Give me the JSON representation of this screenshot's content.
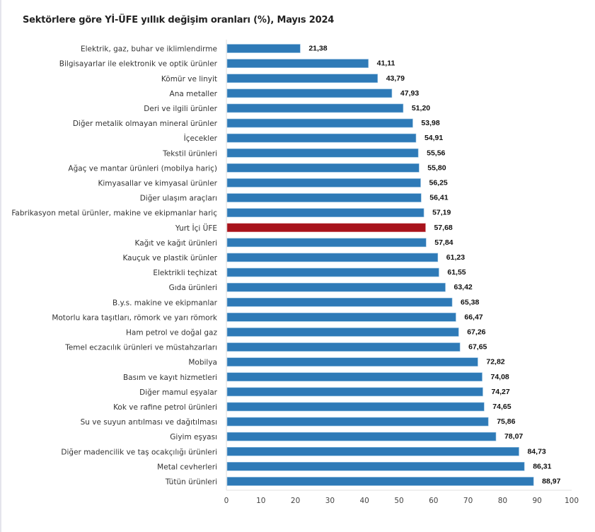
{
  "chart_data": {
    "type": "bar",
    "orientation": "horizontal",
    "title": "Sektörlere göre Yİ-ÜFE yıllık değişim oranları (%), Mayıs 2024",
    "xlabel": "",
    "ylabel": "",
    "xlim": [
      0,
      100
    ],
    "x_ticks": [
      "0",
      "10",
      "20",
      "30",
      "40",
      "50",
      "60",
      "70",
      "80",
      "90",
      "100"
    ],
    "grid": false,
    "legend": "none",
    "colors": {
      "default": "#2e7ab7",
      "highlight": "#a8131b"
    },
    "highlight_category": "Yurt İçi ÜFE",
    "categories": [
      "Elektrik, gaz, buhar ve iklimlendirme",
      "Bilgisayarlar ile elektronik ve optik ürünler",
      "Kömür ve linyit",
      "Ana metaller",
      "Deri ve ilgili ürünler",
      "Diğer metalik olmayan mineral ürünler",
      "İçecekler",
      "Tekstil ürünleri",
      "Ağaç ve mantar ürünleri (mobilya hariç)",
      "Kimyasallar ve kimyasal ürünler",
      "Diğer ulaşım araçları",
      "Fabrikasyon metal ürünler, makine ve ekipmanlar hariç",
      "Yurt İçi ÜFE",
      "Kağıt ve kağıt ürünleri",
      "Kauçuk ve plastik ürünler",
      "Elektrikli teçhizat",
      "Gıda ürünleri",
      "B.y.s. makine ve ekipmanlar",
      "Motorlu kara taşıtları, römork ve yarı römork",
      "Ham petrol ve doğal gaz",
      "Temel eczacılık ürünleri ve müstahzarları",
      "Mobilya",
      "Basım ve kayıt hizmetleri",
      "Diğer mamul eşyalar",
      "Kok ve rafine petrol ürünleri",
      "Su ve suyun arıtılması ve dağıtılması",
      "Giyim eşyası",
      "Diğer madencilik ve taş ocakçılığı ürünleri",
      "Metal cevherleri",
      "Tütün ürünleri"
    ],
    "values": [
      21.38,
      41.11,
      43.79,
      47.93,
      51.2,
      53.98,
      54.91,
      55.56,
      55.8,
      56.25,
      56.41,
      57.19,
      57.68,
      57.84,
      61.23,
      61.55,
      63.42,
      65.38,
      66.47,
      67.26,
      67.65,
      72.82,
      74.08,
      74.27,
      74.65,
      75.86,
      78.07,
      84.73,
      86.31,
      88.97
    ],
    "value_labels": [
      "21,38",
      "41,11",
      "43,79",
      "47,93",
      "51,20",
      "53,98",
      "54,91",
      "55,56",
      "55,80",
      "56,25",
      "56,41",
      "57,19",
      "57,68",
      "57,84",
      "61,23",
      "61,55",
      "63,42",
      "65,38",
      "66,47",
      "67,26",
      "67,65",
      "72,82",
      "74,08",
      "74,27",
      "74,65",
      "75,86",
      "78,07",
      "84,73",
      "86,31",
      "88,97"
    ]
  }
}
